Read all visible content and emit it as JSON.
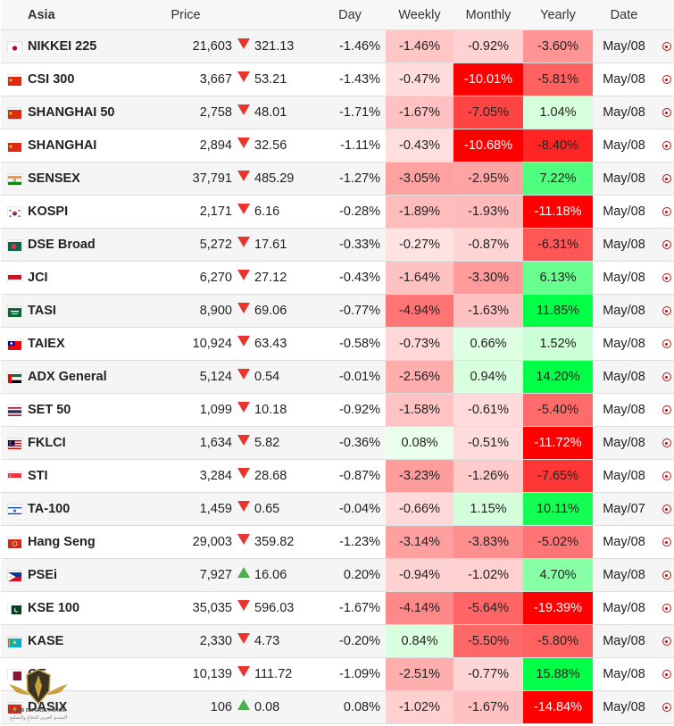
{
  "header": {
    "region": "Asia",
    "price": "Price",
    "day": "Day",
    "weekly": "Weekly",
    "monthly": "Monthly",
    "yearly": "Yearly",
    "date": "Date"
  },
  "colors": {
    "down_arrow": "#e8362e",
    "up_arrow": "#4cb04a",
    "ring_icon": "#b51616"
  },
  "rows": [
    {
      "flag": "jp",
      "name": "NIKKEI 225",
      "price": "21,603",
      "dir": "down",
      "change": "321.13",
      "day": "-1.46%",
      "weekly": "-1.46%",
      "monthly": "-0.92%",
      "yearly": "-3.60%",
      "date": "May/08"
    },
    {
      "flag": "cn",
      "name": "CSI 300",
      "price": "3,667",
      "dir": "down",
      "change": "53.21",
      "day": "-1.43%",
      "weekly": "-0.47%",
      "monthly": "-10.01%",
      "yearly": "-5.81%",
      "date": "May/08"
    },
    {
      "flag": "cn",
      "name": "SHANGHAI 50",
      "price": "2,758",
      "dir": "down",
      "change": "48.01",
      "day": "-1.71%",
      "weekly": "-1.67%",
      "monthly": "-7.05%",
      "yearly": "1.04%",
      "date": "May/08"
    },
    {
      "flag": "cn",
      "name": "SHANGHAI",
      "price": "2,894",
      "dir": "down",
      "change": "32.56",
      "day": "-1.11%",
      "weekly": "-0.43%",
      "monthly": "-10.68%",
      "yearly": "-8.40%",
      "date": "May/08"
    },
    {
      "flag": "in",
      "name": "SENSEX",
      "price": "37,791",
      "dir": "down",
      "change": "485.29",
      "day": "-1.27%",
      "weekly": "-3.05%",
      "monthly": "-2.95%",
      "yearly": "7.22%",
      "date": "May/08"
    },
    {
      "flag": "kr",
      "name": "KOSPI",
      "price": "2,171",
      "dir": "down",
      "change": "6.16",
      "day": "-0.28%",
      "weekly": "-1.89%",
      "monthly": "-1.93%",
      "yearly": "-11.18%",
      "date": "May/08"
    },
    {
      "flag": "bd",
      "name": "DSE Broad",
      "price": "5,272",
      "dir": "down",
      "change": "17.61",
      "day": "-0.33%",
      "weekly": "-0.27%",
      "monthly": "-0.87%",
      "yearly": "-6.31%",
      "date": "May/08"
    },
    {
      "flag": "id",
      "name": "JCI",
      "price": "6,270",
      "dir": "down",
      "change": "27.12",
      "day": "-0.43%",
      "weekly": "-1.64%",
      "monthly": "-3.30%",
      "yearly": "6.13%",
      "date": "May/08"
    },
    {
      "flag": "sa",
      "name": "TASI",
      "price": "8,900",
      "dir": "down",
      "change": "69.06",
      "day": "-0.77%",
      "weekly": "-4.94%",
      "monthly": "-1.63%",
      "yearly": "11.85%",
      "date": "May/08"
    },
    {
      "flag": "tw",
      "name": "TAIEX",
      "price": "10,924",
      "dir": "down",
      "change": "63.43",
      "day": "-0.58%",
      "weekly": "-0.73%",
      "monthly": "0.66%",
      "yearly": "1.52%",
      "date": "May/08"
    },
    {
      "flag": "ae",
      "name": "ADX General",
      "price": "5,124",
      "dir": "down",
      "change": "0.54",
      "day": "-0.01%",
      "weekly": "-2.56%",
      "monthly": "0.94%",
      "yearly": "14.20%",
      "date": "May/08"
    },
    {
      "flag": "th",
      "name": "SET 50",
      "price": "1,099",
      "dir": "down",
      "change": "10.18",
      "day": "-0.92%",
      "weekly": "-1.58%",
      "monthly": "-0.61%",
      "yearly": "-5.40%",
      "date": "May/08"
    },
    {
      "flag": "my",
      "name": "FKLCI",
      "price": "1,634",
      "dir": "down",
      "change": "5.82",
      "day": "-0.36%",
      "weekly": "0.08%",
      "monthly": "-0.51%",
      "yearly": "-11.72%",
      "date": "May/08"
    },
    {
      "flag": "sg",
      "name": "STI",
      "price": "3,284",
      "dir": "down",
      "change": "28.68",
      "day": "-0.87%",
      "weekly": "-3.23%",
      "monthly": "-1.26%",
      "yearly": "-7.65%",
      "date": "May/08"
    },
    {
      "flag": "il",
      "name": "TA-100",
      "price": "1,459",
      "dir": "down",
      "change": "0.65",
      "day": "-0.04%",
      "weekly": "-0.66%",
      "monthly": "1.15%",
      "yearly": "10.11%",
      "date": "May/07"
    },
    {
      "flag": "hk",
      "name": "Hang Seng",
      "price": "29,003",
      "dir": "down",
      "change": "359.82",
      "day": "-1.23%",
      "weekly": "-3.14%",
      "monthly": "-3.83%",
      "yearly": "-5.02%",
      "date": "May/08"
    },
    {
      "flag": "ph",
      "name": "PSEi",
      "price": "7,927",
      "dir": "up",
      "change": "16.06",
      "day": "0.20%",
      "weekly": "-0.94%",
      "monthly": "-1.02%",
      "yearly": "4.70%",
      "date": "May/08"
    },
    {
      "flag": "pk",
      "name": "KSE 100",
      "price": "35,035",
      "dir": "down",
      "change": "596.03",
      "day": "-1.67%",
      "weekly": "-4.14%",
      "monthly": "-5.64%",
      "yearly": "-19.39%",
      "date": "May/08"
    },
    {
      "flag": "kz",
      "name": "KASE",
      "price": "2,330",
      "dir": "down",
      "change": "4.73",
      "day": "-0.20%",
      "weekly": "0.84%",
      "monthly": "-5.50%",
      "yearly": "-5.80%",
      "date": "May/08"
    },
    {
      "flag": "qa",
      "name": "QE",
      "price": "10,139",
      "dir": "down",
      "change": "111.72",
      "day": "-1.09%",
      "weekly": "-2.51%",
      "monthly": "-0.77%",
      "yearly": "15.88%",
      "date": "May/08"
    },
    {
      "flag": "vn",
      "name": "DASIX",
      "price": "106",
      "dir": "up",
      "change": "0.08",
      "day": "0.08%",
      "weekly": "-1.02%",
      "monthly": "-1.67%",
      "yearly": "-14.84%",
      "date": "May/08"
    }
  ],
  "watermark": {
    "line1": "ARAB DEFENSE FORUM",
    "line2": "المنتدى العربي للدفاع والتسليح"
  }
}
